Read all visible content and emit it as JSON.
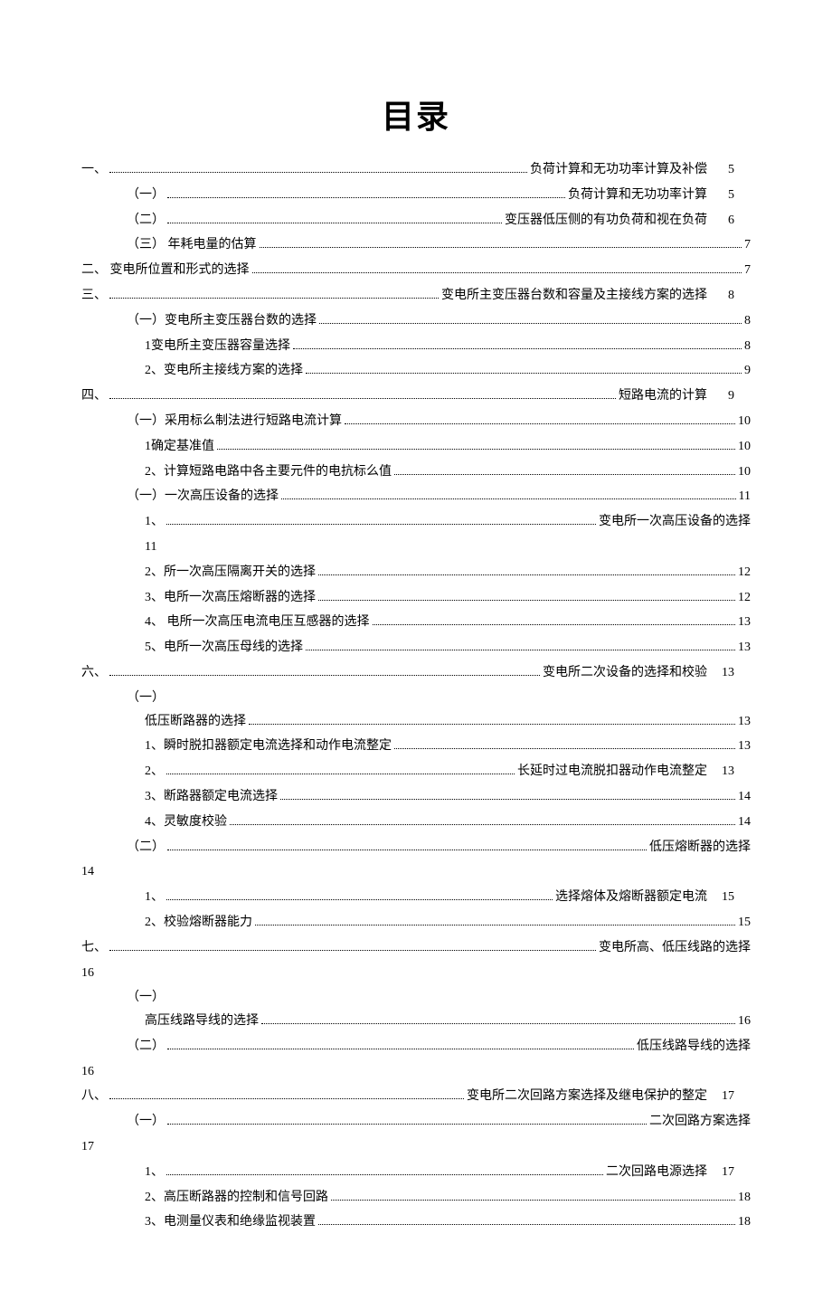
{
  "title": "目录",
  "entries": [
    {
      "indent": 0,
      "label": "一、",
      "dotsFirst": true,
      "trail": "负荷计算和无功功率计算及补偿",
      "page": "5",
      "pageOutside": true
    },
    {
      "indent": 1,
      "label": "（一）",
      "dotsFirst": true,
      "trail": "负荷计算和无功功率计算",
      "page": "5",
      "pageOutside": true
    },
    {
      "indent": 1,
      "label": "（二）",
      "dotsFirst": true,
      "trail": "变压器低压侧的有功负荷和视在负荷",
      "page": "6",
      "pageOutside": true
    },
    {
      "indent": 1,
      "label": "（三） 年耗电量的估算",
      "dotsFirst": false,
      "trail": "",
      "page": "7",
      "pageOutside": false
    },
    {
      "indent": 0,
      "label": "二、  变电所位置和形式的选择",
      "dotsFirst": false,
      "trail": "",
      "page": "7",
      "pageOutside": false
    },
    {
      "indent": 0,
      "label": "三、",
      "dotsFirst": true,
      "trail": "变电所主变压器台数和容量及主接线方案的选择",
      "page": "8",
      "pageOutside": true
    },
    {
      "indent": 1,
      "label": "（一）变电所主变压器台数的选择",
      "dotsFirst": false,
      "trail": "",
      "page": "8",
      "pageOutside": false
    },
    {
      "indent": 2,
      "label": "1变电所主变压器容量选择",
      "dotsFirst": false,
      "trail": "",
      "page": "8",
      "pageOutside": false
    },
    {
      "indent": 2,
      "label": "2、变电所主接线方案的选择",
      "dotsFirst": false,
      "trail": "",
      "page": "9",
      "pageOutside": false
    },
    {
      "indent": 0,
      "label": "四、",
      "dotsFirst": true,
      "trail": "短路电流的计算",
      "page": "9",
      "pageOutside": true
    },
    {
      "indent": 1,
      "label": "（一）采用标么制法进行短路电流计算",
      "dotsFirst": false,
      "trail": "",
      "page": "10",
      "pageOutside": false
    },
    {
      "indent": 2,
      "label": "1确定基准值",
      "dotsFirst": false,
      "trail": "",
      "page": "10",
      "pageOutside": false
    },
    {
      "indent": 2,
      "label": "2、计算短路电路中各主要元件的电抗标么值",
      "dotsFirst": false,
      "trail": "",
      "page": "10",
      "pageOutside": false
    },
    {
      "indent": 1,
      "label": "（一）一次高压设备的选择",
      "dotsFirst": false,
      "trail": "",
      "page": "11",
      "pageOutside": false
    },
    {
      "indent": 2,
      "label": "1、",
      "dotsFirst": true,
      "trail": "变电所一次高压设备的选择",
      "page": "",
      "pageOutside": false,
      "wrapBelow": "11"
    },
    {
      "indent": 2,
      "label": "2、所一次高压隔离开关的选择",
      "dotsFirst": false,
      "trail": "",
      "page": "12",
      "pageOutside": false
    },
    {
      "indent": 2,
      "label": "3、电所一次高压熔断器的选择",
      "dotsFirst": false,
      "trail": "",
      "page": "12",
      "pageOutside": false
    },
    {
      "indent": 2,
      "label": "4、  电所一次高压电流电压互感器的选择",
      "dotsFirst": false,
      "trail": "",
      "page": "13",
      "pageOutside": false
    },
    {
      "indent": 2,
      "label": "5、电所一次高压母线的选择",
      "dotsFirst": false,
      "trail": "",
      "page": "13",
      "pageOutside": false
    },
    {
      "indent": 0,
      "label": "六、",
      "dotsFirst": true,
      "trail": "变电所二次设备的选择和校验",
      "page": "13",
      "pageOutside": true
    },
    {
      "indent": 1,
      "label": "（一）",
      "dotsFirst": false,
      "trail": "",
      "page": "",
      "pageOutside": false,
      "twoLineLabel": "低压断路器的选择",
      "twoLinePage": "13"
    },
    {
      "indent": 2,
      "label": "1、瞬时脱扣器额定电流选择和动作电流整定",
      "dotsFirst": false,
      "trail": "",
      "page": "13",
      "pageOutside": false
    },
    {
      "indent": 2,
      "label": "2、",
      "dotsFirst": true,
      "trail": "长延时过电流脱扣器动作电流整定",
      "page": "13",
      "pageOutside": true
    },
    {
      "indent": 2,
      "label": "3、断路器额定电流选择",
      "dotsFirst": false,
      "trail": "",
      "page": "14",
      "pageOutside": false
    },
    {
      "indent": 2,
      "label": "4、灵敏度校验",
      "dotsFirst": false,
      "trail": "",
      "page": "14",
      "pageOutside": false
    },
    {
      "indent": 1,
      "label": "（二）",
      "dotsFirst": true,
      "trail": "低压熔断器的选择",
      "page": "",
      "pageOutside": false,
      "wrapBelowFar": "14"
    },
    {
      "indent": 2,
      "label": "1、",
      "dotsFirst": true,
      "trail": "选择熔体及熔断器额定电流",
      "page": "15",
      "pageOutside": true
    },
    {
      "indent": 2,
      "label": "2、校验熔断器能力",
      "dotsFirst": false,
      "trail": "",
      "page": "15",
      "pageOutside": false
    },
    {
      "indent": 0,
      "label": "七、",
      "dotsFirst": true,
      "trail": "变电所高、低压线路的选择",
      "page": "",
      "pageOutside": false,
      "wrapBelowFar": "16"
    },
    {
      "indent": 1,
      "label": "（一）",
      "dotsFirst": false,
      "trail": "",
      "page": "",
      "pageOutside": false,
      "twoLineLabel": "高压线路导线的选择",
      "twoLinePage": "16"
    },
    {
      "indent": 1,
      "label": "（二）",
      "dotsFirst": true,
      "trail": "低压线路导线的选择",
      "page": "",
      "pageOutside": false,
      "wrapBelowFar": "16"
    },
    {
      "indent": 0,
      "label": "八、",
      "dotsFirst": true,
      "trail": "变电所二次回路方案选择及继电保护的整定",
      "page": "17",
      "pageOutside": true
    },
    {
      "indent": 1,
      "label": "（一）",
      "dotsFirst": true,
      "trail": "二次回路方案选择",
      "page": "",
      "pageOutside": false,
      "wrapBelowFar": "17"
    },
    {
      "indent": 2,
      "label": "1、",
      "dotsFirst": true,
      "trail": "二次回路电源选择",
      "page": "17",
      "pageOutside": true
    },
    {
      "indent": 2,
      "label": "2、高压断路器的控制和信号回路",
      "dotsFirst": false,
      "trail": "",
      "page": "18",
      "pageOutside": false
    },
    {
      "indent": 2,
      "label": "3、电测量仪表和绝缘监视装置",
      "dotsFirst": false,
      "trail": "",
      "page": "18",
      "pageOutside": false
    }
  ]
}
